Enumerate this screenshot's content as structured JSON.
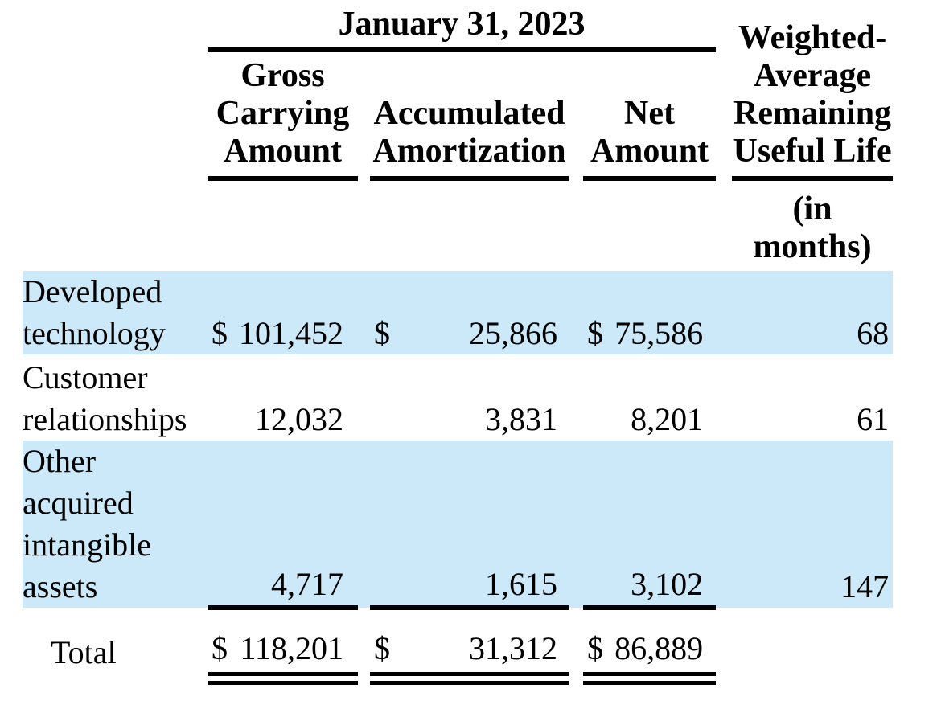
{
  "table": {
    "period_header": "January 31, 2023",
    "currency_symbol": "$",
    "columns": {
      "gross": {
        "lines": [
          "Gross",
          "Carrying",
          "Amount"
        ]
      },
      "accum": {
        "lines": [
          "Accumulated",
          "Amortization"
        ]
      },
      "net": {
        "lines": [
          "Net",
          "Amount"
        ]
      },
      "wavg": {
        "lines": [
          "Weighted-",
          "Average",
          "Remaining",
          "Useful Life"
        ],
        "unit_lines": [
          "(in",
          "months)"
        ]
      }
    },
    "rows": [
      {
        "label_lines": [
          "Developed",
          "technology"
        ],
        "gross": "101,452",
        "accumulated": "25,866",
        "net": "75,586",
        "useful_life_months": "68"
      },
      {
        "label_lines": [
          "Customer",
          "relationships"
        ],
        "gross": "12,032",
        "accumulated": "3,831",
        "net": "8,201",
        "useful_life_months": "61"
      },
      {
        "label_lines": [
          "Other",
          "acquired",
          "intangible",
          "assets"
        ],
        "gross": "4,717",
        "accumulated": "1,615",
        "net": "3,102",
        "useful_life_months": "147"
      }
    ],
    "total": {
      "label": "Total",
      "gross": "118,201",
      "accumulated": "31,312",
      "net": "86,889"
    },
    "colors": {
      "row_highlight": "#cce9f9",
      "rule": "#000000",
      "text": "#000000"
    }
  }
}
